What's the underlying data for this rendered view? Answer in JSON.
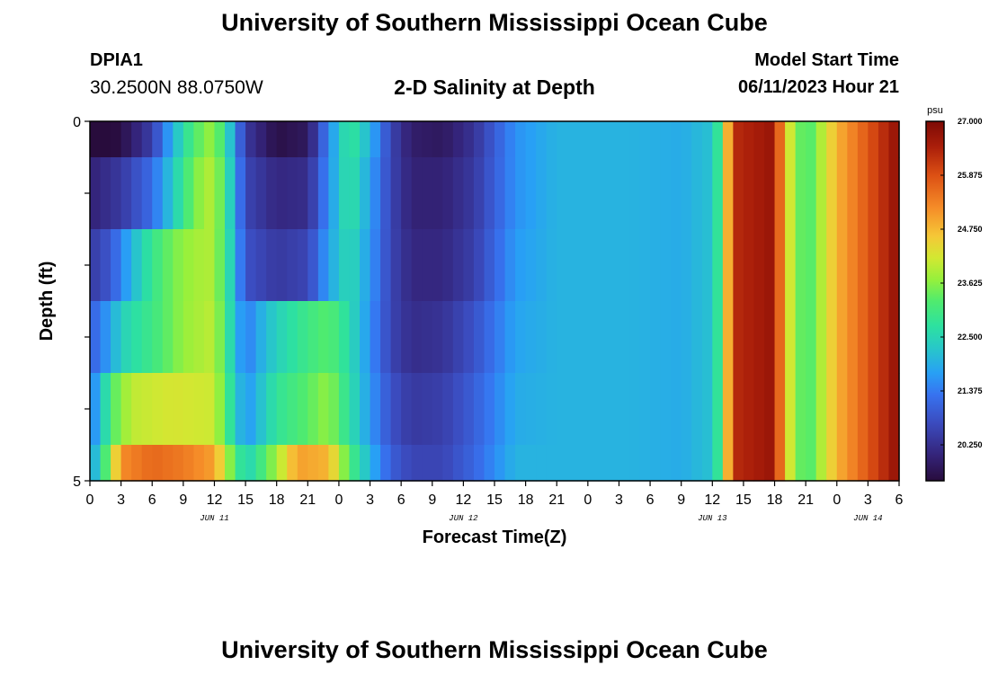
{
  "page": {
    "title_top": "University of Southern Mississippi Ocean Cube",
    "title_bottom": "University of Southern Mississippi Ocean Cube",
    "station": "DPIA1",
    "coords": "30.2500N  88.0750W",
    "subtitle": "2-D Salinity at Depth",
    "model_start_label": "Model Start Time",
    "model_start_value": "06/11/2023 Hour 21"
  },
  "chart_data": {
    "type": "heatmap",
    "title": "2-D Salinity at Depth",
    "xlabel": "Forecast Time(Z)",
    "ylabel": "Depth (ft)",
    "units": "psu",
    "x_hours": [
      0,
      78
    ],
    "x_tick_step_hours": 3,
    "x_tick_labels": [
      "0",
      "3",
      "6",
      "9",
      "12",
      "15",
      "18",
      "21",
      "0",
      "3",
      "6",
      "9",
      "12",
      "15",
      "18",
      "21",
      "0",
      "3",
      "6",
      "9",
      "12",
      "15",
      "18",
      "21",
      "0",
      "3",
      "6"
    ],
    "date_labels": [
      {
        "text": "JUN 11",
        "hour": 12
      },
      {
        "text": "JUN 12",
        "hour": 36
      },
      {
        "text": "JUN 13",
        "hour": 60
      },
      {
        "text": "JUN 14",
        "hour": 75
      }
    ],
    "y_range_ft": [
      0,
      5
    ],
    "y_tick_labels": [
      "0",
      "5"
    ],
    "colorbar": {
      "min": 19.5,
      "max": 27.0,
      "ticks": [
        27.0,
        25.875,
        24.75,
        23.625,
        22.5,
        21.375,
        20.25
      ],
      "tick_labels": [
        "27.000",
        "25.875",
        "24.750",
        "23.625",
        "22.500",
        "21.375",
        "20.250"
      ]
    },
    "depth_layers": [
      {
        "depth_top": 0.0,
        "depth_bottom": 0.5
      },
      {
        "depth_top": 0.5,
        "depth_bottom": 1.5
      },
      {
        "depth_top": 1.5,
        "depth_bottom": 2.5
      },
      {
        "depth_top": 2.5,
        "depth_bottom": 3.5
      },
      {
        "depth_top": 3.5,
        "depth_bottom": 4.5
      },
      {
        "depth_top": 4.5,
        "depth_bottom": 5.0
      }
    ],
    "salinity_keyframes": [
      [
        [
          0,
          19.2
        ],
        [
          3,
          19.6
        ],
        [
          6,
          20.5
        ],
        [
          8,
          22.0
        ],
        [
          10,
          23.2
        ],
        [
          12,
          23.8
        ],
        [
          13.5,
          22.2
        ],
        [
          15,
          20.4
        ],
        [
          18,
          19.6
        ],
        [
          21,
          19.8
        ],
        [
          23,
          21.5
        ],
        [
          25,
          22.9
        ],
        [
          27,
          22.0
        ],
        [
          29,
          20.6
        ],
        [
          31,
          19.9
        ],
        [
          34,
          19.8
        ],
        [
          37,
          20.3
        ],
        [
          41,
          21.6
        ],
        [
          45,
          22.0
        ],
        [
          52,
          22.0
        ],
        [
          57,
          21.9
        ],
        [
          60,
          22.2
        ],
        [
          61,
          23.4
        ],
        [
          62,
          26.3
        ],
        [
          66,
          26.7
        ],
        [
          67,
          24.5
        ],
        [
          69,
          23.0
        ],
        [
          70,
          23.6
        ],
        [
          72,
          24.8
        ],
        [
          75,
          25.8
        ],
        [
          78,
          26.8
        ]
      ],
      [
        [
          0,
          20.0
        ],
        [
          3,
          20.4
        ],
        [
          6,
          21.2
        ],
        [
          8,
          22.3
        ],
        [
          10,
          23.5
        ],
        [
          12,
          24.0
        ],
        [
          13.5,
          22.4
        ],
        [
          15,
          20.6
        ],
        [
          18,
          20.1
        ],
        [
          21,
          20.2
        ],
        [
          23,
          21.6
        ],
        [
          25,
          22.8
        ],
        [
          27,
          21.8
        ],
        [
          29,
          20.6
        ],
        [
          31,
          20.0
        ],
        [
          34,
          20.0
        ],
        [
          37,
          20.4
        ],
        [
          41,
          21.6
        ],
        [
          45,
          22.0
        ],
        [
          52,
          22.0
        ],
        [
          57,
          21.9
        ],
        [
          60,
          22.2
        ],
        [
          61,
          23.4
        ],
        [
          62,
          26.3
        ],
        [
          66,
          26.7
        ],
        [
          67,
          24.5
        ],
        [
          69,
          23.0
        ],
        [
          70,
          23.6
        ],
        [
          72,
          24.8
        ],
        [
          75,
          25.8
        ],
        [
          78,
          26.8
        ]
      ],
      [
        [
          0,
          20.4
        ],
        [
          2,
          20.9
        ],
        [
          4,
          22.0
        ],
        [
          6,
          22.9
        ],
        [
          8,
          23.5
        ],
        [
          10,
          23.8
        ],
        [
          12,
          23.9
        ],
        [
          13.5,
          22.5
        ],
        [
          15,
          20.8
        ],
        [
          18,
          20.4
        ],
        [
          21,
          20.6
        ],
        [
          23,
          21.8
        ],
        [
          25,
          22.6
        ],
        [
          27,
          21.7
        ],
        [
          29,
          20.6
        ],
        [
          31,
          20.1
        ],
        [
          34,
          20.1
        ],
        [
          37,
          20.5
        ],
        [
          41,
          21.7
        ],
        [
          45,
          22.0
        ],
        [
          52,
          22.0
        ],
        [
          57,
          21.9
        ],
        [
          60,
          22.2
        ],
        [
          61,
          23.4
        ],
        [
          62,
          26.3
        ],
        [
          66,
          26.7
        ],
        [
          67,
          24.5
        ],
        [
          69,
          23.0
        ],
        [
          70,
          23.6
        ],
        [
          72,
          24.8
        ],
        [
          75,
          25.8
        ],
        [
          78,
          26.8
        ]
      ],
      [
        [
          0,
          21.0
        ],
        [
          2,
          21.8
        ],
        [
          3,
          22.4
        ],
        [
          6,
          23.0
        ],
        [
          9,
          23.7
        ],
        [
          12,
          24.0
        ],
        [
          13.5,
          22.6
        ],
        [
          15,
          21.3
        ],
        [
          16,
          21.8
        ],
        [
          18,
          22.4
        ],
        [
          21,
          23.0
        ],
        [
          23,
          23.3
        ],
        [
          25,
          22.6
        ],
        [
          27,
          21.6
        ],
        [
          29,
          20.6
        ],
        [
          31,
          20.2
        ],
        [
          34,
          20.3
        ],
        [
          37,
          20.8
        ],
        [
          41,
          21.8
        ],
        [
          45,
          22.0
        ],
        [
          52,
          22.0
        ],
        [
          57,
          21.9
        ],
        [
          60,
          22.2
        ],
        [
          61,
          23.4
        ],
        [
          62,
          26.3
        ],
        [
          66,
          26.7
        ],
        [
          67,
          24.5
        ],
        [
          69,
          23.0
        ],
        [
          70,
          23.6
        ],
        [
          72,
          24.8
        ],
        [
          75,
          25.8
        ],
        [
          78,
          26.8
        ]
      ],
      [
        [
          0,
          21.4
        ],
        [
          1,
          22.0
        ],
        [
          2,
          23.2
        ],
        [
          4,
          24.0
        ],
        [
          8,
          24.2
        ],
        [
          12,
          24.1
        ],
        [
          13.5,
          22.8
        ],
        [
          15,
          21.6
        ],
        [
          16,
          22.0
        ],
        [
          18,
          22.8
        ],
        [
          21,
          23.3
        ],
        [
          23,
          23.7
        ],
        [
          25,
          22.7
        ],
        [
          27,
          21.7
        ],
        [
          29,
          20.8
        ],
        [
          31,
          20.4
        ],
        [
          34,
          20.5
        ],
        [
          37,
          21.0
        ],
        [
          41,
          21.9
        ],
        [
          45,
          22.0
        ],
        [
          52,
          22.0
        ],
        [
          57,
          21.9
        ],
        [
          60,
          22.2
        ],
        [
          61,
          23.4
        ],
        [
          62,
          26.3
        ],
        [
          66,
          26.7
        ],
        [
          67,
          24.5
        ],
        [
          69,
          23.0
        ],
        [
          70,
          23.6
        ],
        [
          72,
          24.8
        ],
        [
          75,
          25.8
        ],
        [
          78,
          26.8
        ]
      ],
      [
        [
          0,
          21.6
        ],
        [
          1,
          22.6
        ],
        [
          2,
          23.8
        ],
        [
          3,
          25.2
        ],
        [
          6,
          25.6
        ],
        [
          9,
          25.4
        ],
        [
          12,
          25.0
        ],
        [
          13.5,
          23.6
        ],
        [
          15,
          22.4
        ],
        [
          16,
          22.8
        ],
        [
          18,
          23.8
        ],
        [
          20,
          25.0
        ],
        [
          23,
          24.8
        ],
        [
          25,
          23.2
        ],
        [
          27,
          22.0
        ],
        [
          29,
          21.0
        ],
        [
          31,
          20.6
        ],
        [
          34,
          20.6
        ],
        [
          37,
          21.1
        ],
        [
          41,
          22.0
        ],
        [
          45,
          22.0
        ],
        [
          52,
          22.0
        ],
        [
          57,
          21.9
        ],
        [
          60,
          22.2
        ],
        [
          61,
          23.4
        ],
        [
          62,
          26.3
        ],
        [
          66,
          26.7
        ],
        [
          67,
          24.5
        ],
        [
          69,
          23.0
        ],
        [
          70,
          23.6
        ],
        [
          72,
          24.8
        ],
        [
          75,
          25.8
        ],
        [
          78,
          26.8
        ]
      ]
    ]
  }
}
